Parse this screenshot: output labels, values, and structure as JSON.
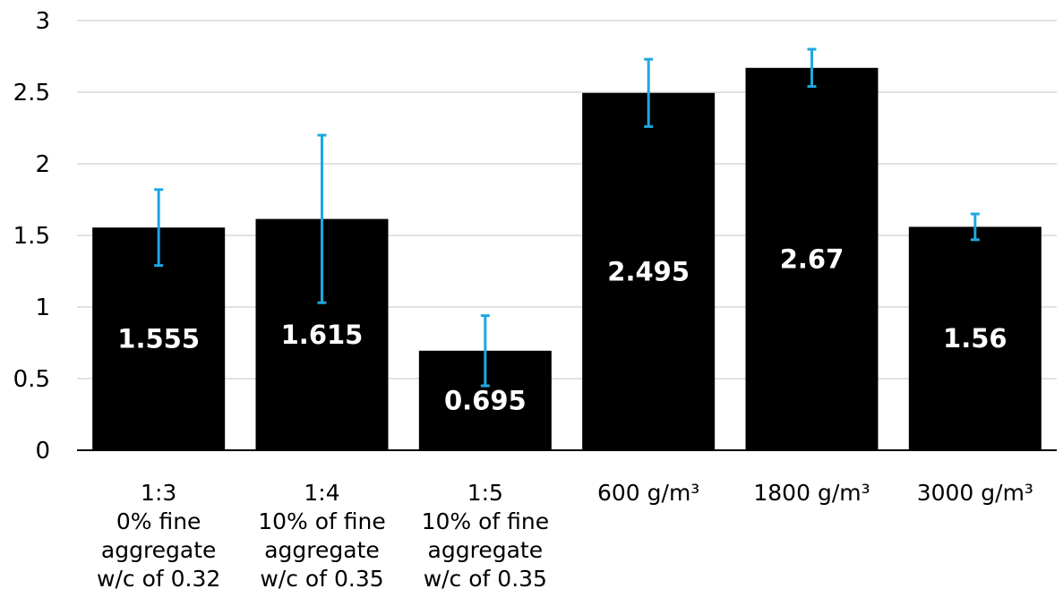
{
  "chart_data": {
    "type": "bar",
    "title": "",
    "xlabel": "",
    "ylabel": "",
    "ylim": [
      0,
      3
    ],
    "yticks": [
      "0",
      "0.5",
      "1",
      "1.5",
      "2",
      "2.5",
      "3"
    ],
    "grid": true,
    "legend": "none",
    "categories": [
      [
        "1:3",
        "0% fine",
        "aggregate",
        "w/c of 0.32"
      ],
      [
        "1:4",
        "10% of fine",
        "aggregate",
        "w/c of 0.35"
      ],
      [
        "1:5",
        "10% of fine",
        "aggregate",
        "w/c of 0.35"
      ],
      [
        "600 g/m³"
      ],
      [
        "1800 g/m³"
      ],
      [
        "3000 g/m³"
      ]
    ],
    "values": [
      1.555,
      1.615,
      0.695,
      2.495,
      2.67,
      1.56
    ],
    "data_labels": [
      "1.555",
      "1.615",
      "0.695",
      "2.495",
      "2.67",
      "1.56"
    ],
    "error_bars": [
      {
        "low": 1.29,
        "high": 1.82
      },
      {
        "low": 1.03,
        "high": 2.2
      },
      {
        "low": 0.45,
        "high": 0.94
      },
      {
        "low": 2.26,
        "high": 2.73
      },
      {
        "low": 2.54,
        "high": 2.8
      },
      {
        "low": 1.47,
        "high": 1.65
      }
    ],
    "colors": {
      "bar": "#000000",
      "error_bar": "#1ea7e1",
      "grid": "#d9d9d9",
      "axis": "#000000",
      "data_label": "#ffffff"
    }
  }
}
